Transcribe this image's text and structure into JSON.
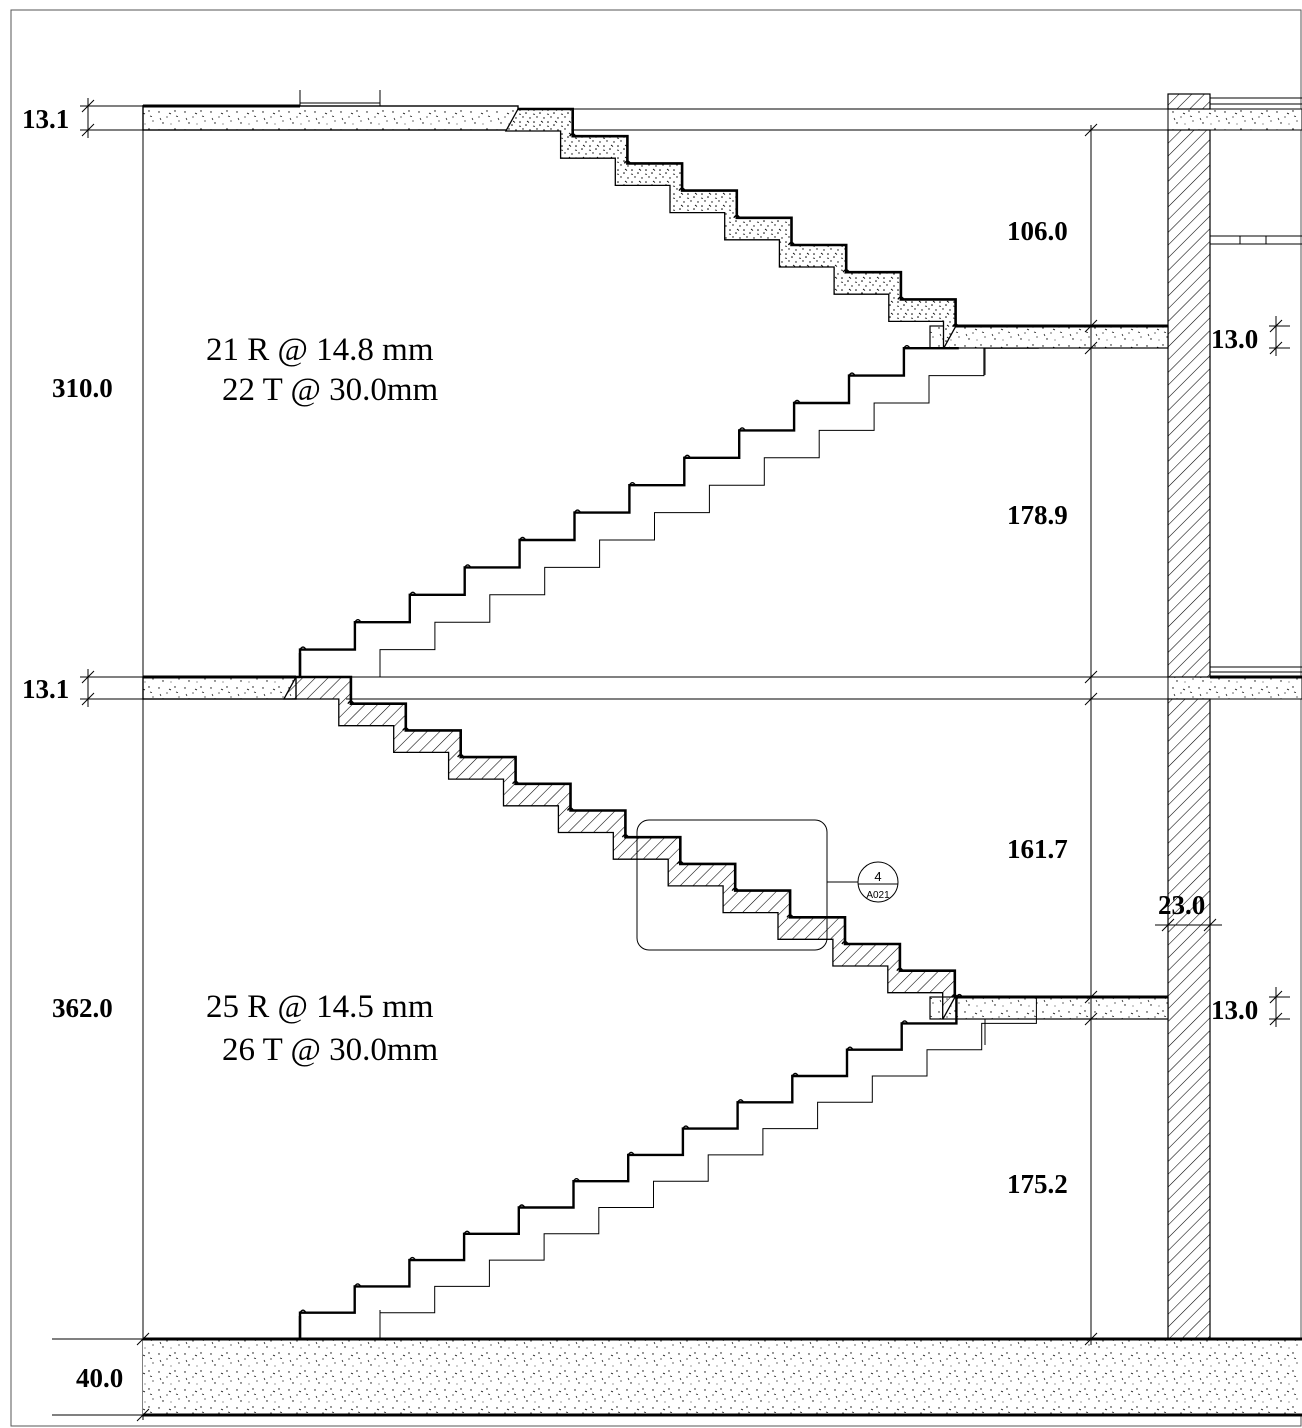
{
  "dimensions": {
    "top_slab": "13.1",
    "upper_height": "310.0",
    "mid_slab": "13.1",
    "lower_height": "362.0",
    "foundation": "40.0",
    "upper_flight_top": "106.0",
    "upper_landing_slab": "13.0",
    "upper_flight_bottom": "178.9",
    "lower_flight_top": "161.7",
    "wall_thickness": "23.0",
    "lower_landing_slab": "13.0",
    "lower_flight_bottom": "175.2"
  },
  "notes": {
    "upper_risers": "21 R @  14.8 mm",
    "upper_treads": "22 T @  30.0mm",
    "lower_risers": "25 R @  14.5 mm",
    "lower_treads": "26 T @  30.0mm"
  },
  "detail_callout": {
    "number": "4",
    "sheet": "A021"
  },
  "colors": {
    "line": "#000000",
    "background": "#ffffff"
  }
}
